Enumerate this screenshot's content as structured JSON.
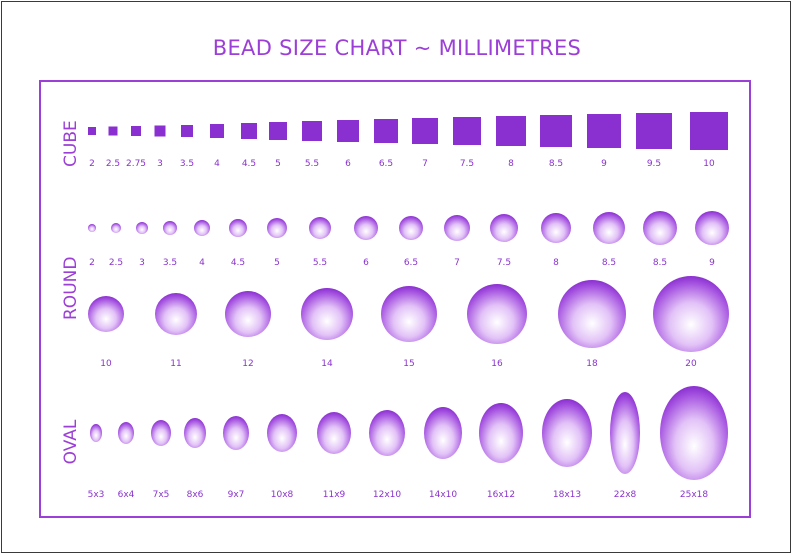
{
  "title": "BEAD SIZE CHART ~ MILLIMETRES",
  "colors": {
    "accent": "#9b3fd6",
    "bead_dark": "#8a2fd0",
    "bead_light": "#ffffff"
  },
  "sections": {
    "cube": "CUBE",
    "round": "ROUND",
    "oval": "OVAL"
  },
  "cube_sizes": [
    "2",
    "2.5",
    "2.75",
    "3",
    "3.5",
    "4",
    "4.5",
    "5",
    "5.5",
    "6",
    "6.5",
    "7",
    "7.5",
    "8",
    "8.5",
    "9",
    "9.5",
    "10"
  ],
  "round_small_sizes": [
    "2",
    "2.5",
    "3",
    "3.5",
    "4",
    "4.5",
    "5",
    "5.5",
    "6",
    "6.5",
    "7",
    "7.5",
    "8",
    "8.5",
    "8.5",
    "9"
  ],
  "round_large_sizes": [
    "10",
    "11",
    "12",
    "14",
    "15",
    "16",
    "18",
    "20"
  ],
  "oval_sizes": [
    "5x3",
    "6x4",
    "7x5",
    "8x6",
    "9x7",
    "10x8",
    "11x9",
    "12x10",
    "14x10",
    "16x12",
    "18x13",
    "22x8",
    "25x18"
  ]
}
